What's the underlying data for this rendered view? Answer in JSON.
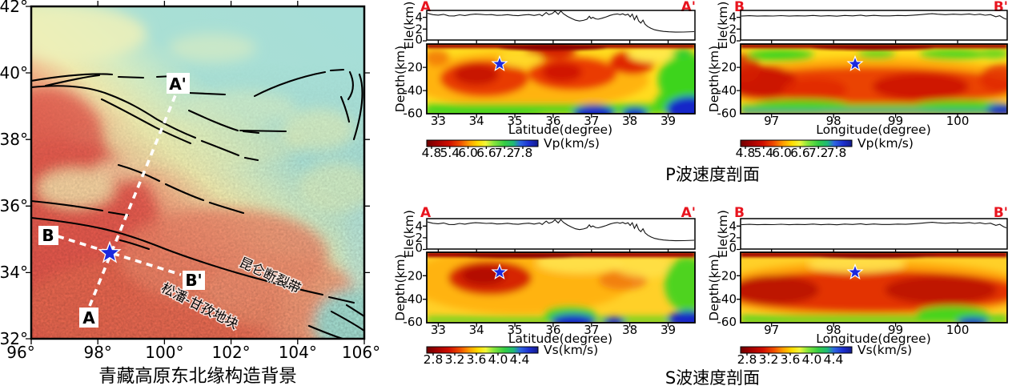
{
  "map": {
    "title": "青藏高原东北缘构造背景",
    "x_ticks": [
      "96°",
      "98°",
      "100°",
      "102°",
      "104°",
      "106°"
    ],
    "y_ticks": [
      "42°",
      "40°",
      "38°",
      "36°",
      "34°",
      "32°"
    ],
    "kunlun_label": "昆仑断裂带",
    "songpan_label": "松潘-甘孜地块",
    "a": "A",
    "a_prime": "A'",
    "b": "B",
    "b_prime": "B'"
  },
  "titles": {
    "p": "P波速度剖面",
    "s": "S波速度剖面"
  },
  "sections_common": {
    "ele_label": "Ele(km)",
    "depth_label": "Depth(km)",
    "ele_ticks": [
      "4",
      "2",
      "0"
    ],
    "depth_ticks": [
      "-20",
      "-40",
      "-60"
    ],
    "lat_axis": {
      "label": "Latitude(degree)",
      "ticks": [
        "33",
        "34",
        "35",
        "36",
        "37",
        "38",
        "39"
      ]
    },
    "lon_axis": {
      "label": "Longitude(degree)",
      "ticks": [
        "97",
        "98",
        "99",
        "100"
      ]
    },
    "vp_colorbar": {
      "label": "Vp(km/s)",
      "ticks": [
        "4.8",
        "5.4",
        "6.0",
        "6.6",
        "7.2",
        "7.8"
      ]
    },
    "vs_colorbar": {
      "label": "Vs(km/s)",
      "ticks": [
        "2.8",
        "3.2",
        "3.6",
        "4.0",
        "4.4"
      ]
    },
    "corners": {
      "a": "A",
      "a_prime": "A'",
      "b": "B",
      "b_prime": "B'"
    }
  },
  "colors": {
    "corner_label_red": "#e8141e",
    "star_blue": "#1b29dd",
    "colormap": [
      "#6e0000",
      "#9c0000",
      "#cf0e00",
      "#f04e00",
      "#ff9c00",
      "#ffdc00",
      "#f2f63a",
      "#8ae63c",
      "#34cc44",
      "#1fb878",
      "#2e66e0",
      "#1c2fd0",
      "#131c8c"
    ],
    "map_teal": "#a6ded8",
    "map_red": "#e25a4b"
  },
  "profiles": {
    "aa": [
      [
        0,
        4.72
      ],
      [
        0.02,
        4.5
      ],
      [
        0.04,
        4.42
      ],
      [
        0.06,
        4.55
      ],
      [
        0.08,
        4.3
      ],
      [
        0.1,
        4.28
      ],
      [
        0.12,
        4.48
      ],
      [
        0.14,
        4.35
      ],
      [
        0.16,
        4.52
      ],
      [
        0.18,
        4.6
      ],
      [
        0.2,
        4.55
      ],
      [
        0.22,
        4.48
      ],
      [
        0.24,
        4.52
      ],
      [
        0.26,
        4.38
      ],
      [
        0.28,
        4.42
      ],
      [
        0.3,
        4.5
      ],
      [
        0.32,
        4.38
      ],
      [
        0.34,
        4.32
      ],
      [
        0.36,
        4.44
      ],
      [
        0.38,
        4.52
      ],
      [
        0.4,
        4.36
      ],
      [
        0.42,
        4.55
      ],
      [
        0.43,
        4.3
      ],
      [
        0.445,
        4.88
      ],
      [
        0.455,
        4.5
      ],
      [
        0.468,
        4.7
      ],
      [
        0.478,
        5.1
      ],
      [
        0.49,
        4.55
      ],
      [
        0.5,
        5.12
      ],
      [
        0.51,
        4.65
      ],
      [
        0.525,
        4.2
      ],
      [
        0.54,
        3.85
      ],
      [
        0.555,
        3.55
      ],
      [
        0.57,
        3.42
      ],
      [
        0.585,
        3.52
      ],
      [
        0.598,
        3.72
      ],
      [
        0.607,
        4.22
      ],
      [
        0.613,
        3.85
      ],
      [
        0.62,
        4.05
      ],
      [
        0.63,
        3.78
      ],
      [
        0.64,
        3.72
      ],
      [
        0.655,
        3.9
      ],
      [
        0.67,
        4.12
      ],
      [
        0.685,
        4.38
      ],
      [
        0.7,
        4.55
      ],
      [
        0.712,
        4.62
      ],
      [
        0.722,
        4.5
      ],
      [
        0.732,
        4.65
      ],
      [
        0.742,
        4.42
      ],
      [
        0.752,
        4.58
      ],
      [
        0.76,
        4.12
      ],
      [
        0.768,
        4.6
      ],
      [
        0.776,
        3.62
      ],
      [
        0.784,
        4.32
      ],
      [
        0.792,
        3.42
      ],
      [
        0.8,
        3.05
      ],
      [
        0.808,
        3.55
      ],
      [
        0.816,
        2.85
      ],
      [
        0.826,
        2.45
      ],
      [
        0.838,
        2.15
      ],
      [
        0.852,
        1.9
      ],
      [
        0.868,
        1.75
      ],
      [
        0.885,
        1.62
      ],
      [
        0.905,
        1.55
      ],
      [
        0.93,
        1.5
      ],
      [
        0.96,
        1.52
      ],
      [
        1,
        1.58
      ]
    ],
    "bb": [
      [
        0,
        4.25
      ],
      [
        0.03,
        4.32
      ],
      [
        0.06,
        4.26
      ],
      [
        0.09,
        4.3
      ],
      [
        0.12,
        4.27
      ],
      [
        0.15,
        4.33
      ],
      [
        0.18,
        4.26
      ],
      [
        0.21,
        4.31
      ],
      [
        0.24,
        4.28
      ],
      [
        0.27,
        4.36
      ],
      [
        0.3,
        4.26
      ],
      [
        0.33,
        4.32
      ],
      [
        0.36,
        4.24
      ],
      [
        0.39,
        4.36
      ],
      [
        0.42,
        4.3
      ],
      [
        0.45,
        4.42
      ],
      [
        0.47,
        4.28
      ],
      [
        0.5,
        4.38
      ],
      [
        0.53,
        4.3
      ],
      [
        0.56,
        4.3
      ],
      [
        0.59,
        4.36
      ],
      [
        0.62,
        4.32
      ],
      [
        0.65,
        4.42
      ],
      [
        0.68,
        4.52
      ],
      [
        0.7,
        4.6
      ],
      [
        0.72,
        4.66
      ],
      [
        0.74,
        4.58
      ],
      [
        0.77,
        4.5
      ],
      [
        0.8,
        4.58
      ],
      [
        0.83,
        4.52
      ],
      [
        0.86,
        4.62
      ],
      [
        0.88,
        4.48
      ],
      [
        0.9,
        4.58
      ],
      [
        0.92,
        4.4
      ],
      [
        0.94,
        4.52
      ],
      [
        0.96,
        4.15
      ],
      [
        0.975,
        4.32
      ],
      [
        0.99,
        3.9
      ],
      [
        1,
        3.72
      ]
    ]
  },
  "chart_data": [
    {
      "id": "tectonic_map",
      "type": "map",
      "title": "青藏高原东北缘构造背景",
      "xlim": [
        96,
        106
      ],
      "ylim": [
        32,
        42
      ],
      "x_ticks": [
        96,
        98,
        100,
        102,
        104,
        106
      ],
      "y_ticks": [
        32,
        34,
        36,
        38,
        40,
        42
      ],
      "star_location": {
        "lon": 98.4,
        "lat": 34.6
      },
      "profile_A": {
        "label": "A-A'",
        "from_lonlat": [
          98.5,
          32.9
        ],
        "to_lonlat": [
          100.3,
          39.4
        ]
      },
      "profile_B": {
        "label": "B-B'",
        "from_lonlat": [
          96.7,
          35.1
        ],
        "to_lonlat": [
          100.6,
          33.9
        ]
      },
      "fault_labels": [
        "昆仑断裂带"
      ],
      "block_labels": [
        "松潘-甘孜地块"
      ]
    },
    {
      "id": "vp_profile_AA",
      "type": "heatmap",
      "group_title": "P波速度剖面",
      "section": "A-A'",
      "xlabel": "Latitude(degree)",
      "xlim": [
        32.7,
        39.7
      ],
      "x_ticks": [
        33,
        34,
        35,
        36,
        37,
        38,
        39
      ],
      "ylabel": "Depth(km)",
      "ylim": [
        -60,
        0
      ],
      "y_ticks": [
        0,
        -20,
        -40,
        -60
      ],
      "colorbar": {
        "label": "Vp(km/s)",
        "ticks": [
          4.8,
          5.4,
          6.0,
          6.6,
          7.2,
          7.8
        ]
      },
      "earthquake_star": {
        "x": 34.6,
        "depth_km": -17
      },
      "elevation_panel": {
        "ylabel": "Ele(km)",
        "y_ticks": [
          0,
          2,
          4
        ],
        "profile_ref": "profiles.aa"
      },
      "anomalies": [
        {
          "vp_kms": 5.7,
          "lat_range": [
            33.4,
            35.3
          ],
          "depth_range": [
            -45,
            -18
          ]
        },
        {
          "vp_kms": 5.8,
          "lat_range": [
            35.4,
            37.3
          ],
          "depth_range": [
            -40,
            -15
          ]
        },
        {
          "vp_kms": 5.8,
          "lat_range": [
            37.7,
            38.3
          ],
          "depth_range": [
            -25,
            -10
          ]
        },
        {
          "vp_kms": 4.9,
          "lat_range": [
            32.7,
            39.7
          ],
          "depth_range": [
            -4,
            0
          ]
        },
        {
          "vp_kms": 7.0,
          "lat_range": [
            38.7,
            39.7
          ],
          "depth_range": [
            -50,
            -10
          ]
        },
        {
          "vp_kms": 7.6,
          "lat_range": [
            36.2,
            37.3
          ],
          "depth_range": [
            -60,
            -52
          ]
        },
        {
          "vp_kms": 7.6,
          "lat_range": [
            37.8,
            38.2
          ],
          "depth_range": [
            -60,
            -54
          ]
        },
        {
          "vp_kms": 7.7,
          "lat_range": [
            39.0,
            39.7
          ],
          "depth_range": [
            -60,
            -45
          ]
        }
      ]
    },
    {
      "id": "vp_profile_BB",
      "type": "heatmap",
      "group_title": "P波速度剖面",
      "section": "B-B'",
      "xlabel": "Longitude(degree)",
      "xlim": [
        96.5,
        100.8
      ],
      "x_ticks": [
        97,
        98,
        99,
        100
      ],
      "ylabel": "Depth(km)",
      "ylim": [
        -60,
        0
      ],
      "y_ticks": [
        0,
        -20,
        -40,
        -60
      ],
      "colorbar": {
        "label": "Vp(km/s)",
        "ticks": [
          4.8,
          5.4,
          6.0,
          6.6,
          7.2,
          7.8
        ]
      },
      "earthquake_star": {
        "x": 98.35,
        "depth_km": -17
      },
      "elevation_panel": {
        "ylabel": "Ele(km)",
        "y_ticks": [
          0,
          2,
          4
        ],
        "profile_ref": "profiles.bb"
      },
      "anomalies": [
        {
          "vp_kms": 6.8,
          "lon_range": [
            96.7,
            97.6
          ],
          "depth_range": [
            -12,
            -5
          ]
        },
        {
          "vp_kms": 6.7,
          "lon_range": [
            98.5,
            99.0
          ],
          "depth_range": [
            -10,
            -5
          ]
        },
        {
          "vp_kms": 6.8,
          "lon_range": [
            99.2,
            100.4
          ],
          "depth_range": [
            -12,
            -5
          ]
        },
        {
          "vp_kms": 5.6,
          "lon_range": [
            96.5,
            100.8
          ],
          "depth_range": [
            -40,
            -20
          ]
        },
        {
          "vp_kms": 7.0,
          "lon_range": [
            96.5,
            100.8
          ],
          "depth_range": [
            -55,
            -45
          ]
        },
        {
          "vp_kms": 7.8,
          "lon_range": [
            96.5,
            100.8
          ],
          "depth_range": [
            -60,
            -56
          ]
        }
      ]
    },
    {
      "id": "vs_profile_AA",
      "type": "heatmap",
      "group_title": "S波速度剖面",
      "section": "A-A'",
      "xlabel": "Latitude(degree)",
      "xlim": [
        32.7,
        39.7
      ],
      "x_ticks": [
        33,
        34,
        35,
        36,
        37,
        38,
        39
      ],
      "ylabel": "Depth(km)",
      "ylim": [
        -60,
        0
      ],
      "y_ticks": [
        0,
        -20,
        -40,
        -60
      ],
      "colorbar": {
        "label": "Vs(km/s)",
        "ticks": [
          2.8,
          3.2,
          3.6,
          4.0,
          4.4
        ]
      },
      "earthquake_star": {
        "x": 34.6,
        "depth_km": -17
      },
      "elevation_panel": {
        "ylabel": "Ele(km)",
        "y_ticks": [
          0,
          2,
          4
        ],
        "profile_ref": "profiles.aa"
      },
      "anomalies": [
        {
          "vs_kms": 3.0,
          "lat_range": [
            33.7,
            35.2
          ],
          "depth_range": [
            -45,
            -18
          ]
        },
        {
          "vs_kms": 3.4,
          "lat_range": [
            37.5,
            38.2
          ],
          "depth_range": [
            -38,
            -26
          ]
        },
        {
          "vs_kms": 2.8,
          "lat_range": [
            32.7,
            39.7
          ],
          "depth_range": [
            -4,
            0
          ]
        },
        {
          "vs_kms": 4.5,
          "lat_range": [
            36.3,
            37.2
          ],
          "depth_range": [
            -60,
            -50
          ]
        },
        {
          "vs_kms": 4.5,
          "lat_range": [
            37.9,
            38.3
          ],
          "depth_range": [
            -60,
            -55
          ]
        },
        {
          "vs_kms": 4.2,
          "lat_range": [
            39.2,
            39.7
          ],
          "depth_range": [
            -50,
            -20
          ]
        }
      ]
    },
    {
      "id": "vs_profile_BB",
      "type": "heatmap",
      "group_title": "S波速度剖面",
      "section": "B-B'",
      "xlabel": "Longitude(degree)",
      "xlim": [
        96.5,
        100.8
      ],
      "x_ticks": [
        97,
        98,
        99,
        100
      ],
      "ylabel": "Depth(km)",
      "ylim": [
        -60,
        0
      ],
      "y_ticks": [
        0,
        -20,
        -40,
        -60
      ],
      "colorbar": {
        "label": "Vs(km/s)",
        "ticks": [
          2.8,
          3.2,
          3.6,
          4.0,
          4.4
        ]
      },
      "earthquake_star": {
        "x": 98.35,
        "depth_km": -17
      },
      "elevation_panel": {
        "ylabel": "Ele(km)",
        "y_ticks": [
          0,
          2,
          4
        ],
        "profile_ref": "profiles.bb"
      },
      "anomalies": [
        {
          "vs_kms": 3.1,
          "lon_range": [
            96.5,
            100.8
          ],
          "depth_range": [
            -42,
            -20
          ]
        },
        {
          "vs_kms": 2.8,
          "lon_range": [
            96.5,
            100.8
          ],
          "depth_range": [
            -4,
            0
          ]
        },
        {
          "vs_kms": 4.0,
          "lon_range": [
            96.5,
            100.8
          ],
          "depth_range": [
            -60,
            -55
          ]
        },
        {
          "vs_kms": 4.5,
          "lon_range": [
            100.2,
            100.6
          ],
          "depth_range": [
            -60,
            -57
          ]
        }
      ]
    }
  ]
}
